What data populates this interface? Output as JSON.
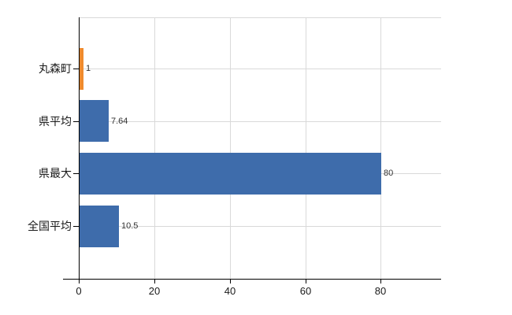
{
  "chart_data": {
    "type": "bar",
    "orientation": "horizontal",
    "title": "",
    "xlabel": "",
    "ylabel": "",
    "categories": [
      "丸森町",
      "県平均",
      "県最大",
      "全国平均"
    ],
    "values": [
      1,
      7.64,
      80,
      10.5
    ],
    "value_labels": [
      "1",
      "7.64",
      "80",
      "10.5"
    ],
    "bar_colors": [
      "#ef8b2e",
      "#3e6cab",
      "#3e6cab",
      "#3e6cab"
    ],
    "x_ticks": [
      0,
      20,
      40,
      60,
      80
    ],
    "x_tick_labels": [
      "0",
      "20",
      "40",
      "60",
      "80"
    ],
    "xlim": [
      0,
      96
    ],
    "grid": true,
    "legend": false,
    "colors": {
      "axis": "#000000",
      "grid": "#d9d9d9",
      "value_label": "#333333",
      "tick_label": "#1a1a1a",
      "background": "#ffffff"
    }
  }
}
